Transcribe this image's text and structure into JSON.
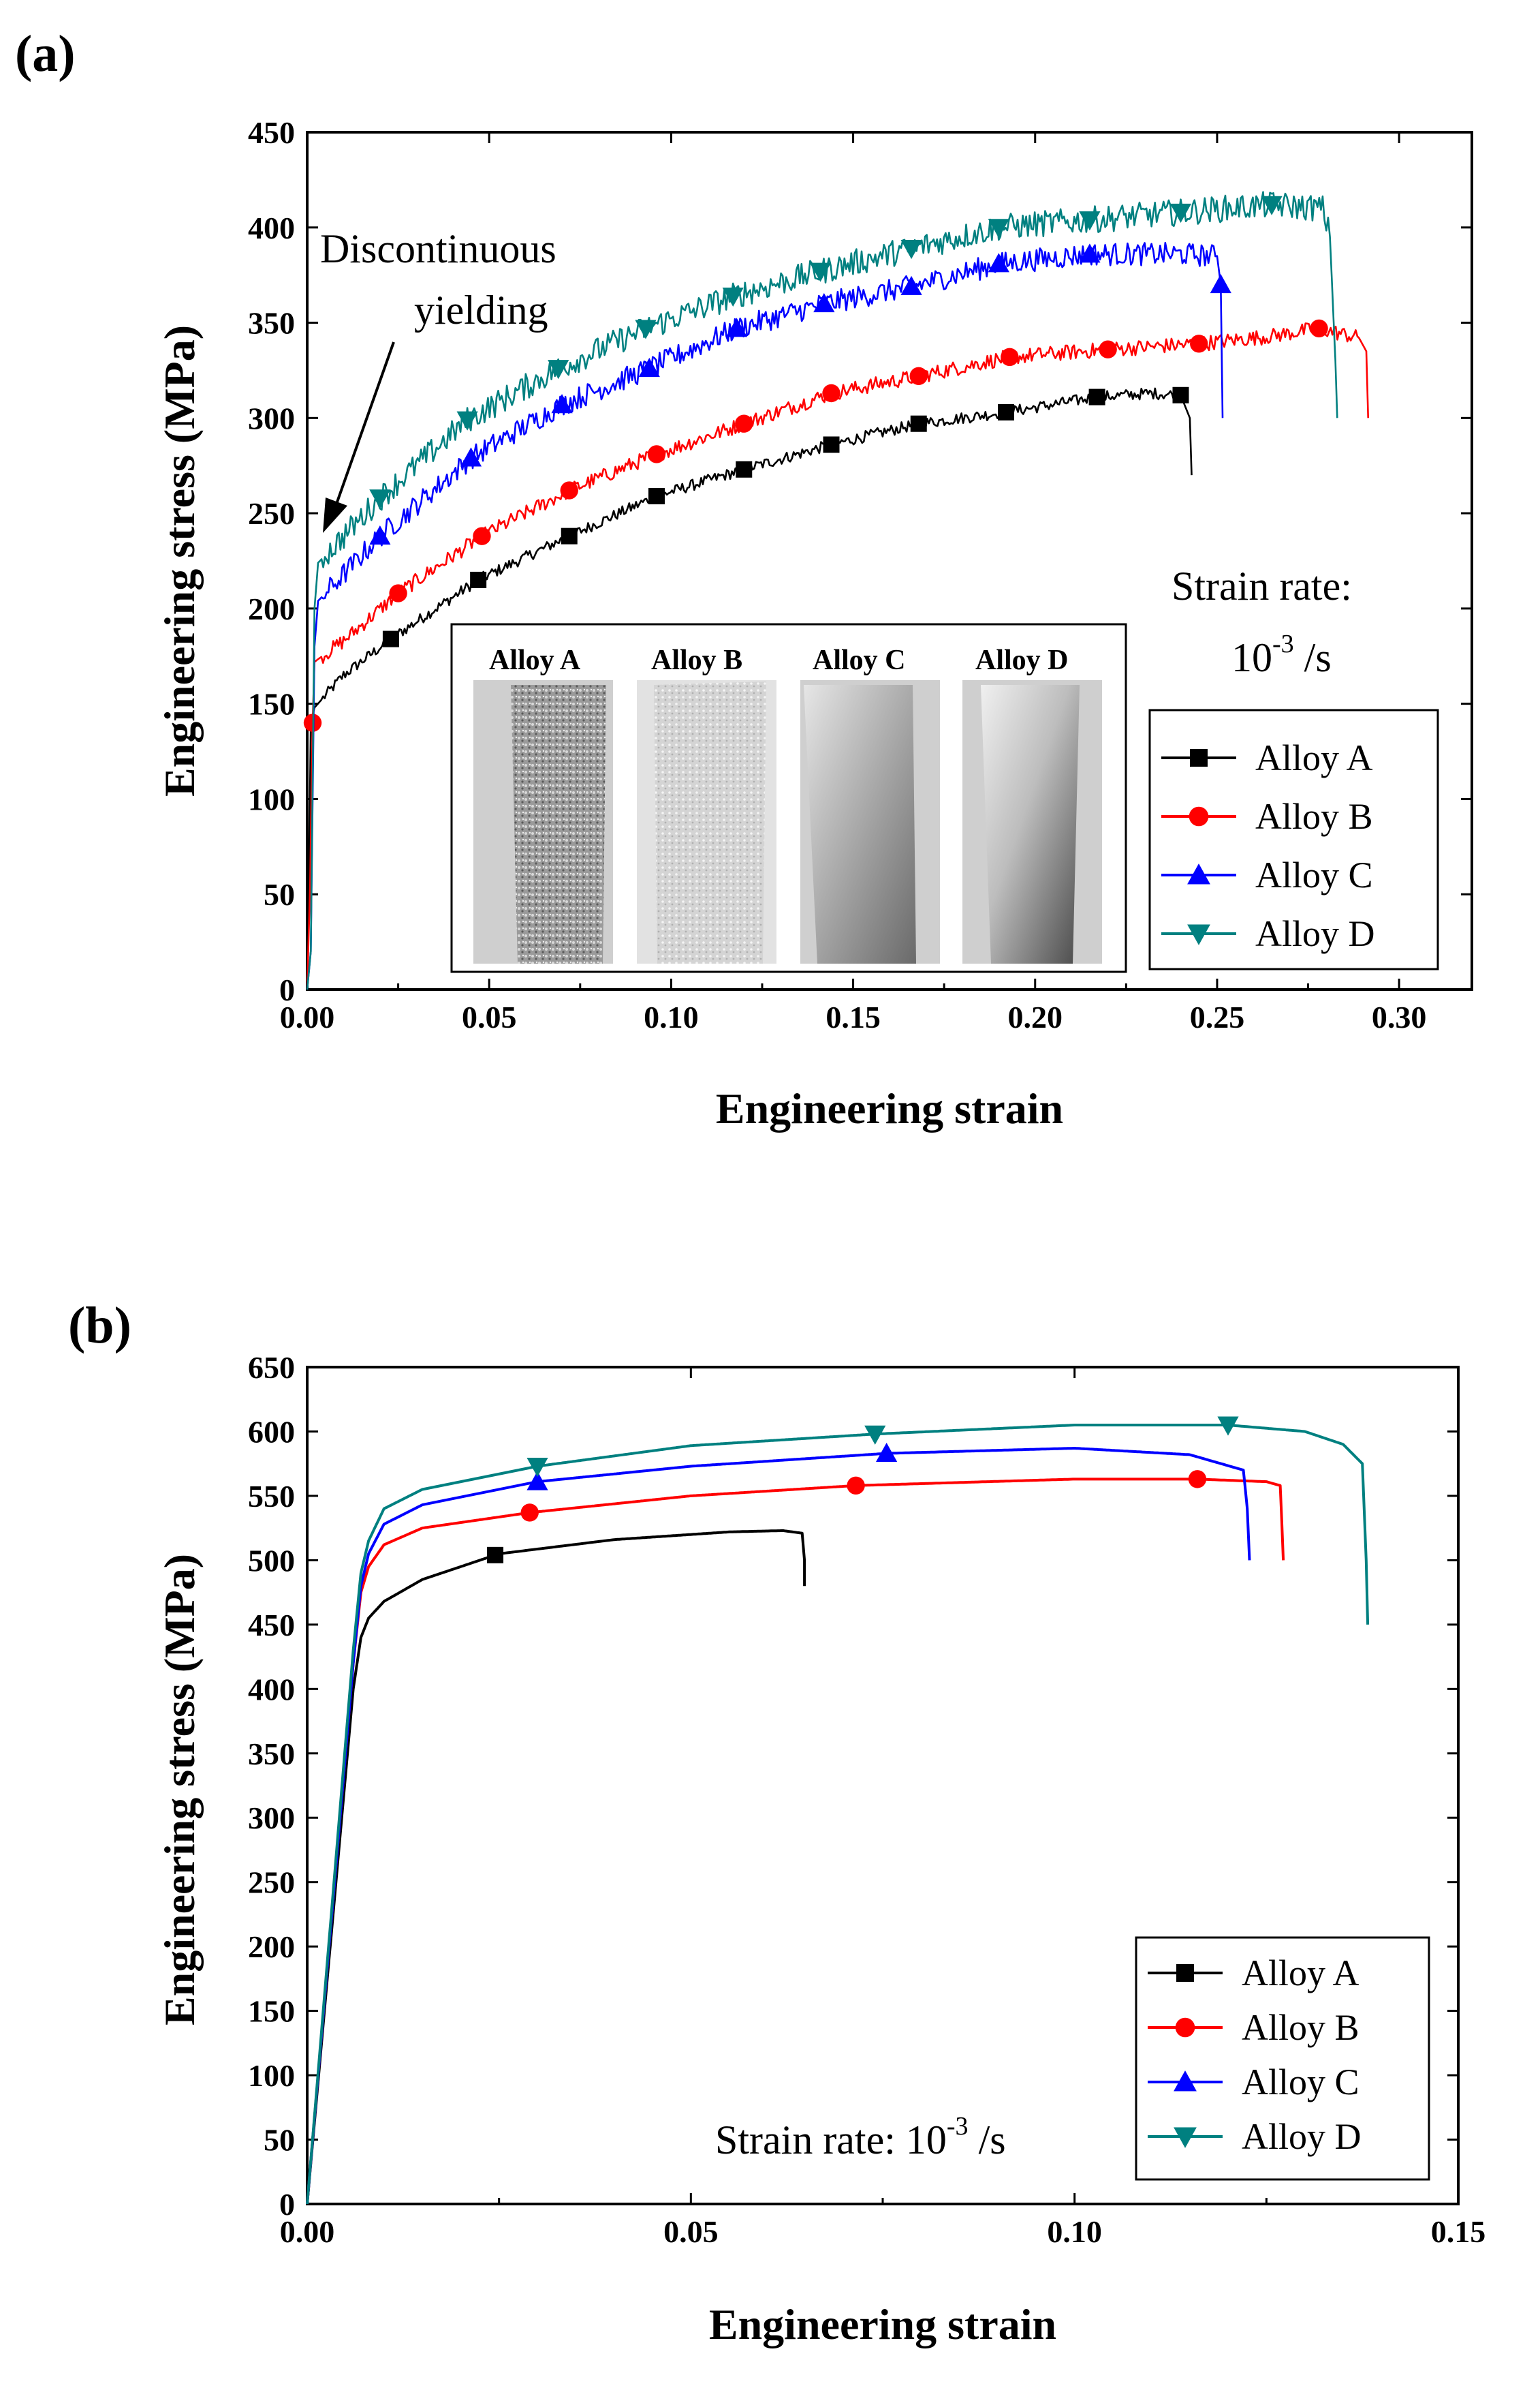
{
  "colors": {
    "Alloy A": "#000000",
    "Alloy B": "#ff0000",
    "Alloy C": "#0000ff",
    "Alloy D": "#008080"
  },
  "chart_data": [
    {
      "panel": "(a)",
      "type": "line",
      "xlabel": "Engineering strain",
      "ylabel": "Engineering stress (MPa)",
      "xlim": [
        0,
        0.32
      ],
      "ylim": [
        0,
        450
      ],
      "x_ticks": [
        "0.00",
        "0.05",
        "0.10",
        "0.15",
        "0.20",
        "0.25",
        "0.30"
      ],
      "y_ticks": [
        "0",
        "50",
        "100",
        "150",
        "200",
        "250",
        "300",
        "350",
        "400",
        "450"
      ],
      "annotation": {
        "line1": "Discontinuous",
        "line2": "yielding"
      },
      "strain_rate": {
        "line1": "Strain rate:",
        "base": "10",
        "exp": "-3",
        "unit": " /s"
      },
      "inset_labels": [
        "Alloy A",
        "Alloy B",
        "Alloy C",
        "Alloy D"
      ],
      "legend": [
        {
          "name": "Alloy A",
          "marker": "square"
        },
        {
          "name": "Alloy B",
          "marker": "circle"
        },
        {
          "name": "Alloy C",
          "marker": "triangle-up"
        },
        {
          "name": "Alloy D",
          "marker": "triangle-down"
        }
      ],
      "series": [
        {
          "name": "Alloy A",
          "marker": "square",
          "noise": 3,
          "x": [
            0,
            0.0005,
            0.001,
            0.002,
            0.01,
            0.023,
            0.047,
            0.072,
            0.096,
            0.12,
            0.144,
            0.168,
            0.192,
            0.217,
            0.232,
            0.24,
            0.2425,
            0.243
          ],
          "y": [
            0,
            60,
            140,
            148,
            165,
            184,
            215,
            238,
            259,
            273,
            286,
            297,
            303,
            311,
            313,
            312,
            300,
            270
          ],
          "markers_x": [
            0.023,
            0.047,
            0.072,
            0.096,
            0.12,
            0.144,
            0.168,
            0.192,
            0.217,
            0.24
          ]
        },
        {
          "name": "Alloy B",
          "marker": "circle",
          "noise": 4,
          "x": [
            0,
            0.0008,
            0.0015,
            0.002,
            0.01,
            0.025,
            0.048,
            0.072,
            0.096,
            0.12,
            0.144,
            0.168,
            0.193,
            0.22,
            0.245,
            0.265,
            0.278,
            0.289,
            0.291,
            0.2915
          ],
          "y": [
            0,
            55,
            140,
            172,
            183,
            208,
            238,
            262,
            281,
            297,
            313,
            322,
            332,
            336,
            339,
            343,
            347,
            342,
            335,
            300
          ],
          "markers_x": [
            0.0015,
            0.025,
            0.048,
            0.072,
            0.096,
            0.12,
            0.144,
            0.168,
            0.193,
            0.22,
            0.245,
            0.278
          ]
        },
        {
          "name": "Alloy C",
          "marker": "triangle-up",
          "noise": 6,
          "x": [
            0,
            0.001,
            0.002,
            0.003,
            0.02,
            0.045,
            0.07,
            0.094,
            0.118,
            0.142,
            0.166,
            0.19,
            0.215,
            0.24,
            0.25,
            0.251,
            0.2515
          ],
          "y": [
            0,
            20,
            180,
            204,
            238,
            279,
            307,
            326,
            347,
            360,
            369,
            381,
            386,
            386,
            385,
            370,
            300
          ],
          "markers_x": [
            0.02,
            0.045,
            0.07,
            0.094,
            0.118,
            0.142,
            0.166,
            0.19,
            0.215,
            0.251
          ]
        },
        {
          "name": "Alloy D",
          "marker": "triangle-down",
          "noise": 7,
          "x": [
            0,
            0.001,
            0.002,
            0.003,
            0.02,
            0.044,
            0.069,
            0.093,
            0.117,
            0.141,
            0.166,
            0.19,
            0.215,
            0.24,
            0.265,
            0.279,
            0.281,
            0.2825,
            0.283
          ],
          "y": [
            0,
            20,
            200,
            224,
            258,
            299,
            326,
            347,
            364,
            377,
            389,
            400,
            404,
            408,
            412,
            410,
            395,
            330,
            300
          ],
          "markers_x": [
            0.02,
            0.044,
            0.069,
            0.093,
            0.117,
            0.141,
            0.166,
            0.19,
            0.215,
            0.24,
            0.265
          ]
        }
      ]
    },
    {
      "panel": "(b)",
      "type": "line",
      "xlabel": "Engineering strain",
      "ylabel": "Engineering stress (MPa)",
      "xlim": [
        0,
        0.15
      ],
      "ylim": [
        0,
        650
      ],
      "x_ticks": [
        "0.00",
        "0.05",
        "0.10",
        "0.15"
      ],
      "y_ticks": [
        "0",
        "50",
        "100",
        "150",
        "200",
        "250",
        "300",
        "350",
        "400",
        "450",
        "500",
        "550",
        "600",
        "650"
      ],
      "strain_rate": {
        "line1": "Strain rate: ",
        "base": "10",
        "exp": "-3",
        "unit": " /s"
      },
      "legend": [
        {
          "name": "Alloy A",
          "marker": "square"
        },
        {
          "name": "Alloy B",
          "marker": "circle"
        },
        {
          "name": "Alloy C",
          "marker": "triangle-up"
        },
        {
          "name": "Alloy D",
          "marker": "triangle-down"
        }
      ],
      "series": [
        {
          "name": "Alloy A",
          "marker": "square",
          "noise": 0,
          "x": [
            0,
            0.006,
            0.007,
            0.008,
            0.01,
            0.015,
            0.025,
            0.04,
            0.055,
            0.062,
            0.0645,
            0.0648,
            0.0648
          ],
          "y": [
            0,
            400,
            440,
            455,
            468,
            485,
            505,
            516,
            522,
            523,
            521,
            500,
            480
          ],
          "markers_x": [
            0.0245
          ]
        },
        {
          "name": "Alloy B",
          "marker": "circle",
          "noise": 0,
          "x": [
            0,
            0.006,
            0.007,
            0.008,
            0.01,
            0.015,
            0.029,
            0.05,
            0.0715,
            0.1,
            0.116,
            0.125,
            0.1268,
            0.127,
            0.1272
          ],
          "y": [
            0,
            420,
            475,
            495,
            512,
            525,
            537,
            550,
            558,
            563,
            563,
            561,
            558,
            530,
            500
          ],
          "markers_x": [
            0.029,
            0.0715,
            0.116
          ]
        },
        {
          "name": "Alloy C",
          "marker": "triangle-up",
          "noise": 0,
          "x": [
            0,
            0.006,
            0.007,
            0.008,
            0.01,
            0.015,
            0.03,
            0.05,
            0.0755,
            0.1,
            0.115,
            0.122,
            0.1225,
            0.1228
          ],
          "y": [
            0,
            420,
            480,
            505,
            528,
            543,
            561,
            573,
            583,
            587,
            582,
            570,
            540,
            500
          ],
          "markers_x": [
            0.03,
            0.0755
          ]
        },
        {
          "name": "Alloy D",
          "marker": "triangle-down",
          "noise": 0,
          "x": [
            0,
            0.006,
            0.007,
            0.008,
            0.01,
            0.015,
            0.03,
            0.05,
            0.074,
            0.1,
            0.12,
            0.13,
            0.135,
            0.1375,
            0.138,
            0.1382
          ],
          "y": [
            0,
            430,
            490,
            515,
            540,
            555,
            573,
            589,
            598,
            605,
            605,
            600,
            590,
            575,
            500,
            450
          ],
          "markers_x": [
            0.03,
            0.074,
            0.12
          ]
        }
      ]
    }
  ]
}
